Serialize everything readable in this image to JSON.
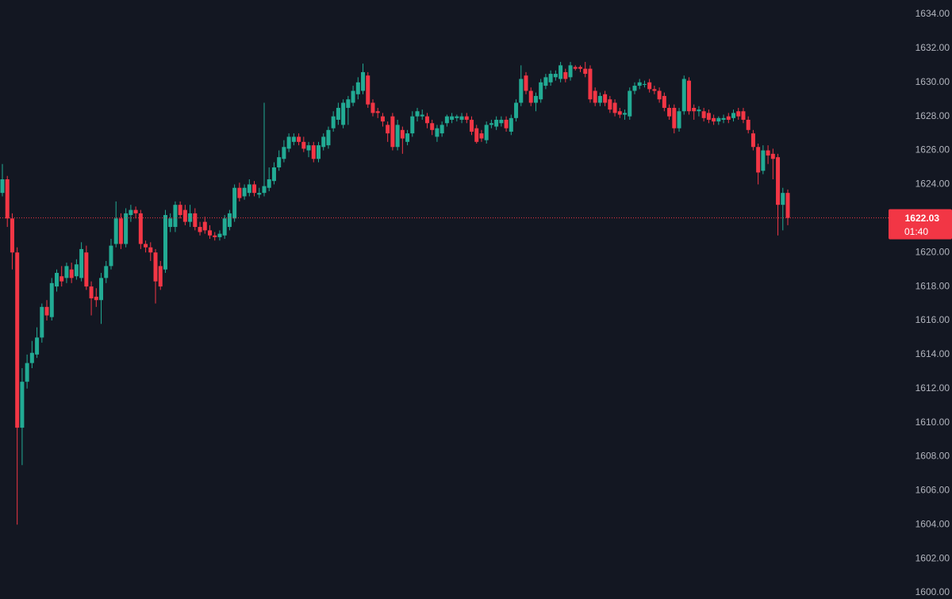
{
  "chart_data": {
    "type": "candlestick",
    "up_color": "#22ab94",
    "down_color": "#f23645",
    "ylim": [
      1599.63,
      1634.84
    ],
    "yticks": [
      {
        "value": 1600,
        "label": "1600.00"
      },
      {
        "value": 1602,
        "label": "1602.00"
      },
      {
        "value": 1604,
        "label": "1604.00"
      },
      {
        "value": 1606,
        "label": "1606.00"
      },
      {
        "value": 1608,
        "label": "1608.00"
      },
      {
        "value": 1610,
        "label": "1610.00"
      },
      {
        "value": 1612,
        "label": "1612.00"
      },
      {
        "value": 1614,
        "label": "1614.00"
      },
      {
        "value": 1616,
        "label": "1616.00"
      },
      {
        "value": 1618,
        "label": "1618.00"
      },
      {
        "value": 1620,
        "label": "1620.00"
      },
      {
        "value": 1622,
        "label": "1622.00"
      },
      {
        "value": 1624,
        "label": "1624.00"
      },
      {
        "value": 1626,
        "label": "1626.00"
      },
      {
        "value": 1628,
        "label": "1628.00"
      },
      {
        "value": 1630,
        "label": "1630.00"
      },
      {
        "value": 1632,
        "label": "1632.00"
      },
      {
        "value": 1634,
        "label": "1634.00"
      }
    ],
    "last_price": 1622.03,
    "countdown": "01:40",
    "candles": [
      [
        1623.5,
        1625.2,
        1623.3,
        1624.3
      ],
      [
        1624.3,
        1624.5,
        1621.5,
        1622.0
      ],
      [
        1622.0,
        1622.3,
        1619.0,
        1620.0
      ],
      [
        1620.0,
        1620.3,
        1604.0,
        1609.7
      ],
      [
        1609.7,
        1613.2,
        1607.5,
        1612.4
      ],
      [
        1612.4,
        1614.0,
        1612.0,
        1613.5
      ],
      [
        1613.5,
        1614.8,
        1613.2,
        1614.1
      ],
      [
        1614.0,
        1615.6,
        1613.8,
        1615.0
      ],
      [
        1615.0,
        1617.0,
        1614.7,
        1616.8
      ],
      [
        1616.8,
        1617.2,
        1616.0,
        1616.3
      ],
      [
        1616.2,
        1618.5,
        1616.0,
        1618.2
      ],
      [
        1618.0,
        1619.0,
        1617.7,
        1618.8
      ],
      [
        1618.6,
        1619.2,
        1618.0,
        1618.3
      ],
      [
        1618.5,
        1619.4,
        1618.2,
        1619.2
      ],
      [
        1619.0,
        1619.4,
        1618.2,
        1618.5
      ],
      [
        1618.6,
        1619.6,
        1618.4,
        1619.3
      ],
      [
        1618.5,
        1620.6,
        1618.3,
        1620.2
      ],
      [
        1620.0,
        1620.4,
        1617.8,
        1618.0
      ],
      [
        1618.0,
        1618.3,
        1616.3,
        1617.3
      ],
      [
        1617.4,
        1617.9,
        1616.8,
        1617.2
      ],
      [
        1617.2,
        1618.8,
        1615.8,
        1618.5
      ],
      [
        1618.5,
        1619.5,
        1618.2,
        1619.2
      ],
      [
        1619.2,
        1620.8,
        1619.0,
        1620.4
      ],
      [
        1620.5,
        1623.0,
        1620.3,
        1622.0
      ],
      [
        1622.0,
        1622.3,
        1620.2,
        1620.5
      ],
      [
        1620.5,
        1622.6,
        1620.3,
        1622.3
      ],
      [
        1622.2,
        1622.8,
        1621.8,
        1622.5
      ],
      [
        1622.5,
        1622.7,
        1622.0,
        1622.3
      ],
      [
        1622.3,
        1622.5,
        1620.2,
        1620.5
      ],
      [
        1620.5,
        1620.7,
        1620.0,
        1620.3
      ],
      [
        1620.3,
        1620.6,
        1619.5,
        1620.0
      ],
      [
        1620.0,
        1620.2,
        1617.0,
        1618.3
      ],
      [
        1619.2,
        1619.5,
        1617.8,
        1618.0
      ],
      [
        1619.0,
        1622.5,
        1618.8,
        1622.2
      ],
      [
        1621.5,
        1622.3,
        1621.2,
        1622.0
      ],
      [
        1621.5,
        1623.0,
        1621.2,
        1622.8
      ],
      [
        1622.8,
        1623.0,
        1622.0,
        1622.2
      ],
      [
        1622.5,
        1622.8,
        1621.6,
        1621.8
      ],
      [
        1621.8,
        1622.8,
        1621.5,
        1622.3
      ],
      [
        1622.3,
        1622.6,
        1621.3,
        1621.5
      ],
      [
        1621.5,
        1621.8,
        1621.0,
        1621.2
      ],
      [
        1621.8,
        1622.1,
        1621.1,
        1621.3
      ],
      [
        1621.3,
        1621.6,
        1620.8,
        1621.0
      ],
      [
        1621.0,
        1621.2,
        1620.7,
        1620.9
      ],
      [
        1620.9,
        1621.3,
        1620.7,
        1621.1
      ],
      [
        1621.0,
        1622.2,
        1620.8,
        1622.0
      ],
      [
        1621.5,
        1622.5,
        1621.3,
        1622.3
      ],
      [
        1622.0,
        1624.0,
        1621.8,
        1623.8
      ],
      [
        1623.8,
        1624.1,
        1623.0,
        1623.2
      ],
      [
        1623.3,
        1624.0,
        1623.1,
        1623.8
      ],
      [
        1623.5,
        1624.3,
        1623.3,
        1624.0
      ],
      [
        1624.0,
        1624.2,
        1623.3,
        1623.5
      ],
      [
        1623.4,
        1623.8,
        1623.2,
        1623.5
      ],
      [
        1623.5,
        1628.8,
        1623.3,
        1623.9
      ],
      [
        1623.8,
        1625.0,
        1623.6,
        1624.3
      ],
      [
        1624.2,
        1625.3,
        1624.0,
        1625.0
      ],
      [
        1625.0,
        1626.0,
        1624.8,
        1625.6
      ],
      [
        1625.5,
        1626.6,
        1625.3,
        1626.2
      ],
      [
        1626.1,
        1627.0,
        1625.9,
        1626.8
      ],
      [
        1626.5,
        1627.0,
        1626.3,
        1626.8
      ],
      [
        1626.8,
        1627.0,
        1626.3,
        1626.5
      ],
      [
        1626.5,
        1626.8,
        1625.9,
        1626.1
      ],
      [
        1626.0,
        1626.5,
        1625.6,
        1626.3
      ],
      [
        1626.3,
        1626.5,
        1625.3,
        1625.5
      ],
      [
        1625.5,
        1626.5,
        1625.3,
        1626.3
      ],
      [
        1626.2,
        1627.0,
        1626.0,
        1626.8
      ],
      [
        1626.3,
        1627.4,
        1626.1,
        1627.2
      ],
      [
        1627.3,
        1628.3,
        1627.1,
        1628.0
      ],
      [
        1627.8,
        1628.8,
        1627.5,
        1628.5
      ],
      [
        1627.5,
        1629.0,
        1627.3,
        1628.8
      ],
      [
        1628.5,
        1629.2,
        1627.5,
        1629.0
      ],
      [
        1628.8,
        1629.8,
        1628.6,
        1629.5
      ],
      [
        1629.3,
        1630.3,
        1629.0,
        1630.0
      ],
      [
        1629.5,
        1631.1,
        1629.3,
        1630.6
      ],
      [
        1630.4,
        1630.6,
        1628.5,
        1628.7
      ],
      [
        1628.8,
        1629.0,
        1628.0,
        1628.2
      ],
      [
        1628.3,
        1628.5,
        1627.9,
        1628.2
      ],
      [
        1628.0,
        1628.2,
        1627.4,
        1627.7
      ],
      [
        1627.5,
        1627.7,
        1626.5,
        1627.0
      ],
      [
        1628.0,
        1628.2,
        1626.0,
        1626.2
      ],
      [
        1626.2,
        1627.8,
        1626.0,
        1627.5
      ],
      [
        1627.2,
        1627.4,
        1625.8,
        1626.7
      ],
      [
        1626.5,
        1627.2,
        1626.3,
        1627.0
      ],
      [
        1627.0,
        1628.3,
        1626.8,
        1628.0
      ],
      [
        1628.0,
        1628.5,
        1627.7,
        1628.3
      ],
      [
        1628.0,
        1628.4,
        1627.8,
        1628.1
      ],
      [
        1628.0,
        1628.2,
        1627.3,
        1627.6
      ],
      [
        1627.6,
        1627.8,
        1626.9,
        1627.2
      ],
      [
        1626.8,
        1627.5,
        1626.5,
        1627.3
      ],
      [
        1627.0,
        1627.7,
        1626.8,
        1627.5
      ],
      [
        1627.6,
        1628.1,
        1627.4,
        1628.0
      ],
      [
        1627.8,
        1628.2,
        1627.6,
        1628.0
      ],
      [
        1627.9,
        1628.1,
        1627.7,
        1628.0
      ],
      [
        1627.8,
        1628.2,
        1627.6,
        1628.0
      ],
      [
        1628.0,
        1628.2,
        1627.6,
        1627.8
      ],
      [
        1627.8,
        1628.0,
        1626.9,
        1627.1
      ],
      [
        1627.3,
        1627.5,
        1626.4,
        1626.5
      ],
      [
        1627.0,
        1627.2,
        1626.5,
        1626.7
      ],
      [
        1626.6,
        1627.7,
        1626.4,
        1627.5
      ],
      [
        1627.5,
        1627.8,
        1627.3,
        1627.6
      ],
      [
        1627.4,
        1628.0,
        1627.2,
        1627.8
      ],
      [
        1627.6,
        1628.0,
        1627.4,
        1627.8
      ],
      [
        1627.8,
        1628.0,
        1627.1,
        1627.3
      ],
      [
        1627.1,
        1628.1,
        1626.9,
        1627.9
      ],
      [
        1627.9,
        1629.0,
        1627.7,
        1628.8
      ],
      [
        1628.8,
        1631.0,
        1628.6,
        1630.2
      ],
      [
        1630.4,
        1630.6,
        1629.3,
        1629.5
      ],
      [
        1629.5,
        1629.7,
        1628.6,
        1628.8
      ],
      [
        1628.8,
        1629.4,
        1628.3,
        1629.2
      ],
      [
        1629.0,
        1630.2,
        1628.8,
        1630.0
      ],
      [
        1629.8,
        1630.5,
        1629.6,
        1630.3
      ],
      [
        1630.0,
        1630.7,
        1629.8,
        1630.5
      ],
      [
        1630.3,
        1630.7,
        1630.1,
        1630.5
      ],
      [
        1630.2,
        1631.2,
        1630.0,
        1631.0
      ],
      [
        1630.6,
        1630.8,
        1630.0,
        1630.2
      ],
      [
        1630.3,
        1631.2,
        1630.1,
        1631.0
      ],
      [
        1630.9,
        1631.0,
        1630.7,
        1630.8
      ],
      [
        1630.9,
        1631.0,
        1630.6,
        1630.8
      ],
      [
        1630.8,
        1631.2,
        1630.3,
        1630.5
      ],
      [
        1630.8,
        1631.0,
        1628.8,
        1629.0
      ],
      [
        1629.5,
        1629.7,
        1628.6,
        1628.8
      ],
      [
        1628.8,
        1629.4,
        1628.6,
        1629.2
      ],
      [
        1629.3,
        1629.5,
        1628.6,
        1628.8
      ],
      [
        1629.0,
        1629.2,
        1628.2,
        1628.4
      ],
      [
        1628.8,
        1629.0,
        1628.0,
        1628.2
      ],
      [
        1628.3,
        1628.5,
        1627.9,
        1628.1
      ],
      [
        1628.1,
        1628.4,
        1627.8,
        1628.2
      ],
      [
        1628.0,
        1629.7,
        1627.8,
        1629.5
      ],
      [
        1629.5,
        1630.0,
        1629.3,
        1629.8
      ],
      [
        1629.8,
        1630.2,
        1629.6,
        1630.0
      ],
      [
        1629.9,
        1630.1,
        1629.7,
        1629.9
      ],
      [
        1630.0,
        1630.2,
        1629.4,
        1629.6
      ],
      [
        1629.6,
        1629.8,
        1629.3,
        1629.5
      ],
      [
        1629.5,
        1629.7,
        1628.8,
        1629.0
      ],
      [
        1629.2,
        1629.4,
        1628.3,
        1628.5
      ],
      [
        1628.5,
        1628.7,
        1627.8,
        1628.0
      ],
      [
        1628.5,
        1628.7,
        1627.0,
        1627.3
      ],
      [
        1627.3,
        1628.5,
        1627.1,
        1628.3
      ],
      [
        1628.3,
        1630.4,
        1628.1,
        1630.2
      ],
      [
        1630.1,
        1630.3,
        1628.1,
        1628.3
      ],
      [
        1628.5,
        1628.7,
        1627.8,
        1628.3
      ],
      [
        1628.3,
        1628.6,
        1628.0,
        1628.4
      ],
      [
        1628.3,
        1628.5,
        1627.7,
        1627.9
      ],
      [
        1628.2,
        1628.4,
        1627.6,
        1627.8
      ],
      [
        1627.9,
        1628.1,
        1627.5,
        1627.7
      ],
      [
        1627.7,
        1628.0,
        1627.5,
        1627.9
      ],
      [
        1627.8,
        1628.1,
        1627.6,
        1627.9
      ],
      [
        1628.0,
        1628.2,
        1627.6,
        1627.8
      ],
      [
        1627.9,
        1628.4,
        1627.7,
        1628.2
      ],
      [
        1628.3,
        1628.5,
        1627.8,
        1628.0
      ],
      [
        1628.3,
        1628.5,
        1627.6,
        1627.8
      ],
      [
        1627.8,
        1628.0,
        1627.0,
        1627.2
      ],
      [
        1627.0,
        1627.2,
        1626.0,
        1626.2
      ],
      [
        1626.2,
        1626.4,
        1624.0,
        1624.7
      ],
      [
        1624.8,
        1626.3,
        1624.6,
        1626.0
      ],
      [
        1626.0,
        1626.3,
        1625.2,
        1625.7
      ],
      [
        1625.8,
        1626.1,
        1624.3,
        1625.5
      ],
      [
        1625.6,
        1625.8,
        1621.0,
        1622.8
      ],
      [
        1622.8,
        1623.8,
        1621.3,
        1623.5
      ],
      [
        1623.5,
        1623.7,
        1621.6,
        1622.03
      ]
    ]
  }
}
